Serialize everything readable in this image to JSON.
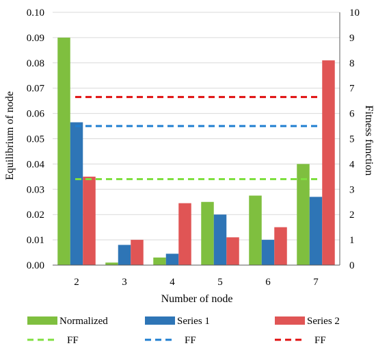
{
  "chart_data": {
    "type": "bar",
    "categories": [
      "2",
      "3",
      "4",
      "5",
      "6",
      "7"
    ],
    "xlabel": "Number of node",
    "ylabel": "Equilibrium of node",
    "y2label": "Fitness function",
    "ylim": [
      0,
      0.1
    ],
    "y2lim": [
      0,
      10
    ],
    "yticks": [
      "0.00",
      "0.01",
      "0.02",
      "0.03",
      "0.04",
      "0.05",
      "0.06",
      "0.07",
      "0.08",
      "0.09",
      "0.10"
    ],
    "y2ticks": [
      "0",
      "1",
      "2",
      "3",
      "4",
      "5",
      "6",
      "7",
      "8",
      "9",
      "10"
    ],
    "grid": true,
    "legend_position": "bottom",
    "series": [
      {
        "name": "Normalized",
        "color": "#7fbf3f",
        "values": [
          0.09,
          0.001,
          0.003,
          0.025,
          0.0275,
          0.04
        ]
      },
      {
        "name": "Series 1",
        "color": "#2e75b6",
        "values": [
          0.0565,
          0.008,
          0.0045,
          0.02,
          0.01,
          0.027
        ]
      },
      {
        "name": "Series 2",
        "color": "#e05555",
        "values": [
          0.035,
          0.01,
          0.0245,
          0.011,
          0.015,
          0.081
        ]
      }
    ],
    "lines": [
      {
        "name": "FF",
        "color": "#7fdf3f",
        "axis": "right",
        "value": 3.4
      },
      {
        "name": "FF",
        "color": "#1f7ed0",
        "axis": "right",
        "value": 5.5
      },
      {
        "name": "FF",
        "color": "#e01010",
        "axis": "right",
        "value": 6.65
      }
    ]
  }
}
